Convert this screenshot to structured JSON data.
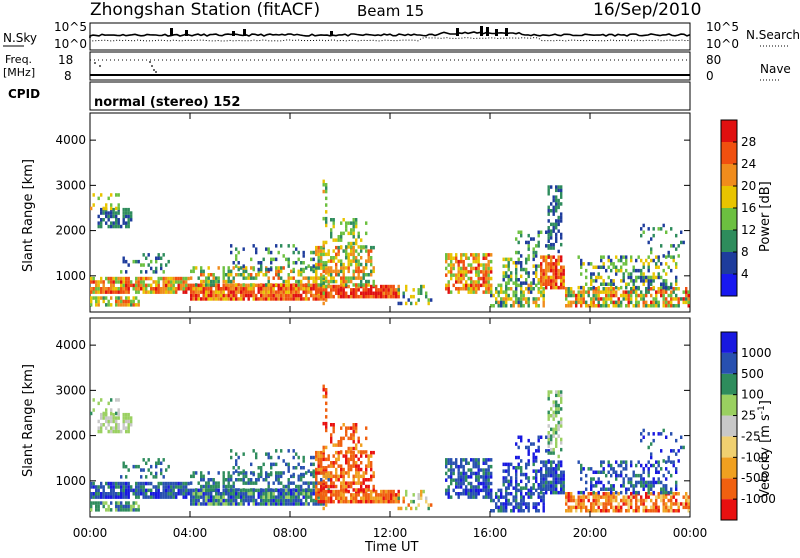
{
  "header": {
    "station": "Zhongshan Station (fitACF)",
    "beam": "Beam 15",
    "date": "16/Sep/2010"
  },
  "aux_panels": {
    "nsky_label": "N.Sky",
    "nsky_tick_top": "10^5",
    "nsky_tick_bottom": "10^0",
    "nsearch_label": "N.Search",
    "nsearch_tick_top": "10^5",
    "nsearch_tick_bottom": "10^0",
    "freq_label": "Freq.",
    "freq_unit": "[MHz]",
    "freq_tick_top": "18",
    "freq_tick_bottom": "8",
    "nave_label": "Nave",
    "nave_tick_top": "80",
    "nave_tick_bottom": "0",
    "cpid_label": "CPID",
    "cpid_text": "normal (stereo) 152"
  },
  "colors": {
    "power_scale": [
      "#1818f0",
      "#1e3c9c",
      "#2e8c5c",
      "#6cc040",
      "#e8c400",
      "#f08c1c",
      "#f05010",
      "#e01010"
    ],
    "velocity_scale": [
      "#e81010",
      "#f06010",
      "#f0a020",
      "#f0d070",
      "#c8c8c8",
      "#9ad060",
      "#2e8c5c",
      "#2850b0",
      "#1818e0"
    ]
  },
  "chart_data": [
    {
      "type": "heatmap",
      "name": "power",
      "ylabel": "Slant Range [km]",
      "ylim": [
        200,
        4600
      ],
      "yticks": [
        "1000",
        "2000",
        "3000",
        "4000"
      ],
      "xlim_hours": [
        0,
        24
      ],
      "colorbar_label": "Power [dB]",
      "colorbar_ticks": [
        "4",
        "8",
        "12",
        "16",
        "20",
        "24",
        "28"
      ],
      "colorbar_range": [
        0,
        32
      ],
      "regions": [
        {
          "t": [
            0.3,
            1.7
          ],
          "r": [
            2050,
            2450
          ],
          "v": [
            6,
            10
          ],
          "d": 0.7
        },
        {
          "t": [
            0.0,
            1.2
          ],
          "r": [
            2450,
            2800
          ],
          "v": [
            12,
            22
          ],
          "d": 0.3
        },
        {
          "t": [
            0.0,
            4.0
          ],
          "r": [
            600,
            950
          ],
          "v": [
            12,
            30
          ],
          "d": 0.85
        },
        {
          "t": [
            0.0,
            2.0
          ],
          "r": [
            320,
            520
          ],
          "v": [
            10,
            26
          ],
          "d": 0.75
        },
        {
          "t": [
            1.2,
            3.2
          ],
          "r": [
            1050,
            1500
          ],
          "v": [
            4,
            16
          ],
          "d": 0.25
        },
        {
          "t": [
            4.0,
            9.3
          ],
          "r": [
            450,
            760
          ],
          "v": [
            18,
            32
          ],
          "d": 0.92
        },
        {
          "t": [
            4.0,
            9.5
          ],
          "r": [
            760,
            1150
          ],
          "v": [
            8,
            26
          ],
          "d": 0.55
        },
        {
          "t": [
            5.5,
            9.0
          ],
          "r": [
            1100,
            1700
          ],
          "v": [
            4,
            16
          ],
          "d": 0.2
        },
        {
          "t": [
            9.0,
            12.3
          ],
          "r": [
            500,
            760
          ],
          "v": [
            22,
            32
          ],
          "d": 0.9
        },
        {
          "t": [
            9.0,
            11.3
          ],
          "r": [
            760,
            1600
          ],
          "v": [
            10,
            26
          ],
          "d": 0.6
        },
        {
          "t": [
            9.6,
            11.0
          ],
          "r": [
            1600,
            2250
          ],
          "v": [
            8,
            20
          ],
          "d": 0.35
        },
        {
          "t": [
            9.3,
            9.5
          ],
          "r": [
            200,
            3100
          ],
          "v": [
            10,
            22
          ],
          "d": 0.3
        },
        {
          "t": [
            12.3,
            13.6
          ],
          "r": [
            350,
            800
          ],
          "v": [
            6,
            20
          ],
          "d": 0.35
        },
        {
          "t": [
            14.2,
            16.0
          ],
          "r": [
            600,
            1500
          ],
          "v": [
            12,
            30
          ],
          "d": 0.75
        },
        {
          "t": [
            16.0,
            18.2
          ],
          "r": [
            300,
            800
          ],
          "v": [
            6,
            22
          ],
          "d": 0.6
        },
        {
          "t": [
            16.5,
            18.0
          ],
          "r": [
            800,
            1400
          ],
          "v": [
            4,
            18
          ],
          "d": 0.45
        },
        {
          "t": [
            17.0,
            18.4
          ],
          "r": [
            1400,
            2000
          ],
          "v": [
            4,
            14
          ],
          "d": 0.35
        },
        {
          "t": [
            18.0,
            19.0
          ],
          "r": [
            700,
            1400
          ],
          "v": [
            18,
            32
          ],
          "d": 0.8
        },
        {
          "t": [
            18.3,
            18.9
          ],
          "r": [
            1500,
            3000
          ],
          "v": [
            4,
            12
          ],
          "d": 0.55
        },
        {
          "t": [
            19.0,
            24.0
          ],
          "r": [
            300,
            700
          ],
          "v": [
            8,
            30
          ],
          "d": 0.7
        },
        {
          "t": [
            19.5,
            23.5
          ],
          "r": [
            700,
            1450
          ],
          "v": [
            4,
            20
          ],
          "d": 0.45
        },
        {
          "t": [
            22.0,
            23.8
          ],
          "r": [
            1400,
            2100
          ],
          "v": [
            4,
            14
          ],
          "d": 0.2
        }
      ]
    },
    {
      "type": "heatmap",
      "name": "velocity",
      "ylabel": "Slant Range [km]",
      "ylim": [
        200,
        4600
      ],
      "yticks": [
        "1000",
        "2000",
        "3000",
        "4000"
      ],
      "xlabel": "Time UT",
      "xticks": [
        "00:00",
        "04:00",
        "08:00",
        "12:00",
        "16:00",
        "20:00",
        "00:00"
      ],
      "xtick_hours": [
        0,
        4,
        8,
        12,
        16,
        20,
        24
      ],
      "xlim_hours": [
        0,
        24
      ],
      "colorbar_label": "Velocity [m s^-1]",
      "colorbar_ticks": [
        "-1000",
        "-500",
        "-100",
        "-25",
        "25",
        "100",
        "500",
        "1000"
      ],
      "regions": [
        {
          "t": [
            0.3,
            1.7
          ],
          "r": [
            2050,
            2450
          ],
          "v": [
            4,
            5
          ],
          "d": 0.7
        },
        {
          "t": [
            0.0,
            1.2
          ],
          "r": [
            2450,
            2800
          ],
          "v": [
            4,
            6
          ],
          "d": 0.3
        },
        {
          "t": [
            0.0,
            4.0
          ],
          "r": [
            600,
            950
          ],
          "v": [
            6,
            8
          ],
          "d": 0.85
        },
        {
          "t": [
            0.0,
            2.0
          ],
          "r": [
            320,
            520
          ],
          "v": [
            5,
            7
          ],
          "d": 0.75
        },
        {
          "t": [
            1.2,
            3.2
          ],
          "r": [
            1050,
            1500
          ],
          "v": [
            6,
            7
          ],
          "d": 0.25
        },
        {
          "t": [
            4.0,
            9.3
          ],
          "r": [
            450,
            760
          ],
          "v": [
            5,
            8
          ],
          "d": 0.92
        },
        {
          "t": [
            4.0,
            9.5
          ],
          "r": [
            760,
            1150
          ],
          "v": [
            6,
            7
          ],
          "d": 0.55
        },
        {
          "t": [
            5.5,
            9.0
          ],
          "r": [
            1100,
            1700
          ],
          "v": [
            6,
            7
          ],
          "d": 0.2
        },
        {
          "t": [
            9.0,
            12.3
          ],
          "r": [
            500,
            760
          ],
          "v": [
            0,
            2
          ],
          "d": 0.9
        },
        {
          "t": [
            9.0,
            11.3
          ],
          "r": [
            760,
            1600
          ],
          "v": [
            0,
            2
          ],
          "d": 0.6
        },
        {
          "t": [
            9.6,
            11.0
          ],
          "r": [
            1600,
            2250
          ],
          "v": [
            0,
            2
          ],
          "d": 0.35
        },
        {
          "t": [
            9.3,
            9.5
          ],
          "r": [
            200,
            3100
          ],
          "v": [
            0,
            2
          ],
          "d": 0.3
        },
        {
          "t": [
            12.3,
            13.6
          ],
          "r": [
            350,
            800
          ],
          "v": [
            1,
            6
          ],
          "d": 0.35
        },
        {
          "t": [
            14.2,
            16.0
          ],
          "r": [
            600,
            1500
          ],
          "v": [
            6,
            8
          ],
          "d": 0.75
        },
        {
          "t": [
            16.0,
            18.2
          ],
          "r": [
            300,
            800
          ],
          "v": [
            6,
            8
          ],
          "d": 0.6
        },
        {
          "t": [
            16.5,
            18.0
          ],
          "r": [
            800,
            1400
          ],
          "v": [
            6,
            8
          ],
          "d": 0.45
        },
        {
          "t": [
            17.0,
            18.4
          ],
          "r": [
            1400,
            2000
          ],
          "v": [
            7,
            8
          ],
          "d": 0.35
        },
        {
          "t": [
            18.0,
            19.0
          ],
          "r": [
            700,
            1400
          ],
          "v": [
            6,
            8
          ],
          "d": 0.8
        },
        {
          "t": [
            18.3,
            18.9
          ],
          "r": [
            1500,
            3000
          ],
          "v": [
            4,
            6
          ],
          "d": 0.55
        },
        {
          "t": [
            19.0,
            24.0
          ],
          "r": [
            300,
            700
          ],
          "v": [
            0,
            3
          ],
          "d": 0.7
        },
        {
          "t": [
            19.5,
            23.5
          ],
          "r": [
            700,
            1450
          ],
          "v": [
            6,
            8
          ],
          "d": 0.45
        },
        {
          "t": [
            22.0,
            23.8
          ],
          "r": [
            1400,
            2100
          ],
          "v": [
            6,
            8
          ],
          "d": 0.2
        }
      ]
    }
  ]
}
